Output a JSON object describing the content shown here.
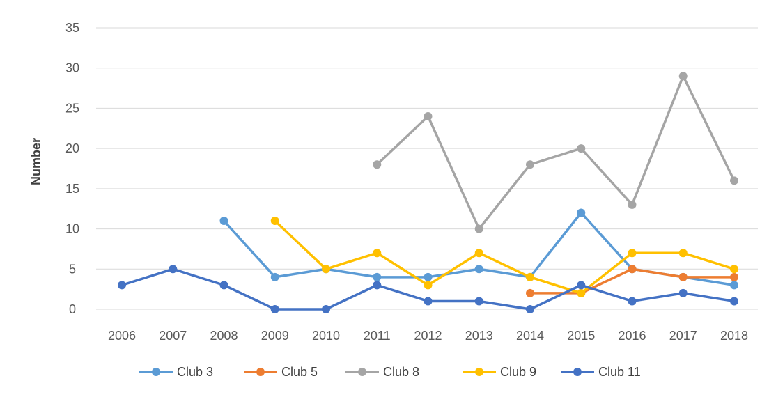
{
  "chart_data": {
    "type": "line",
    "title": "",
    "xlabel": "",
    "ylabel": "Number",
    "ylim": [
      0,
      35
    ],
    "yticks": [
      0,
      5,
      10,
      15,
      20,
      25,
      30,
      35
    ],
    "categories": [
      "2006",
      "2007",
      "2008",
      "2009",
      "2010",
      "2011",
      "2012",
      "2013",
      "2014",
      "2015",
      "2016",
      "2017",
      "2018"
    ],
    "grid": "horizontal",
    "legend_position": "bottom",
    "series": [
      {
        "name": "Club 3",
        "color": "#5b9bd5",
        "values": [
          null,
          null,
          11,
          4,
          5,
          4,
          4,
          5,
          4,
          12,
          5,
          4,
          3
        ]
      },
      {
        "name": "Club 5",
        "color": "#ed7d31",
        "values": [
          null,
          null,
          null,
          null,
          null,
          null,
          null,
          null,
          2,
          2,
          5,
          4,
          4
        ]
      },
      {
        "name": "Club 8",
        "color": "#a5a5a5",
        "values": [
          null,
          null,
          null,
          null,
          null,
          18,
          24,
          10,
          18,
          20,
          13,
          29,
          16
        ]
      },
      {
        "name": "Club 9",
        "color": "#ffc000",
        "values": [
          null,
          null,
          null,
          11,
          5,
          7,
          3,
          7,
          4,
          2,
          7,
          7,
          5
        ]
      },
      {
        "name": "Club 11",
        "color": "#4472c4",
        "values": [
          3,
          5,
          3,
          0,
          0,
          3,
          1,
          1,
          0,
          3,
          1,
          2,
          1
        ]
      }
    ]
  }
}
